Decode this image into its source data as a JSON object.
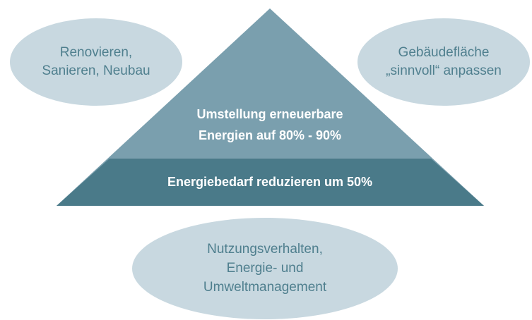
{
  "nodes": [
    {
      "label": [
        "Renovieren,",
        "Sanieren, Neubau"
      ]
    },
    {
      "label": [
        "Gebäudefläche",
        "„sinnvoll“ anpassen"
      ]
    },
    {
      "label": [
        "Nutzungsverhalten,",
        "Energie- und",
        "Umweltmanagement"
      ]
    }
  ],
  "pyramid": {
    "top": [
      "Umstellung erneuerbare",
      "Energien auf 80% - 90%"
    ],
    "base": "Energiebedarf reduzieren um 50%"
  }
}
